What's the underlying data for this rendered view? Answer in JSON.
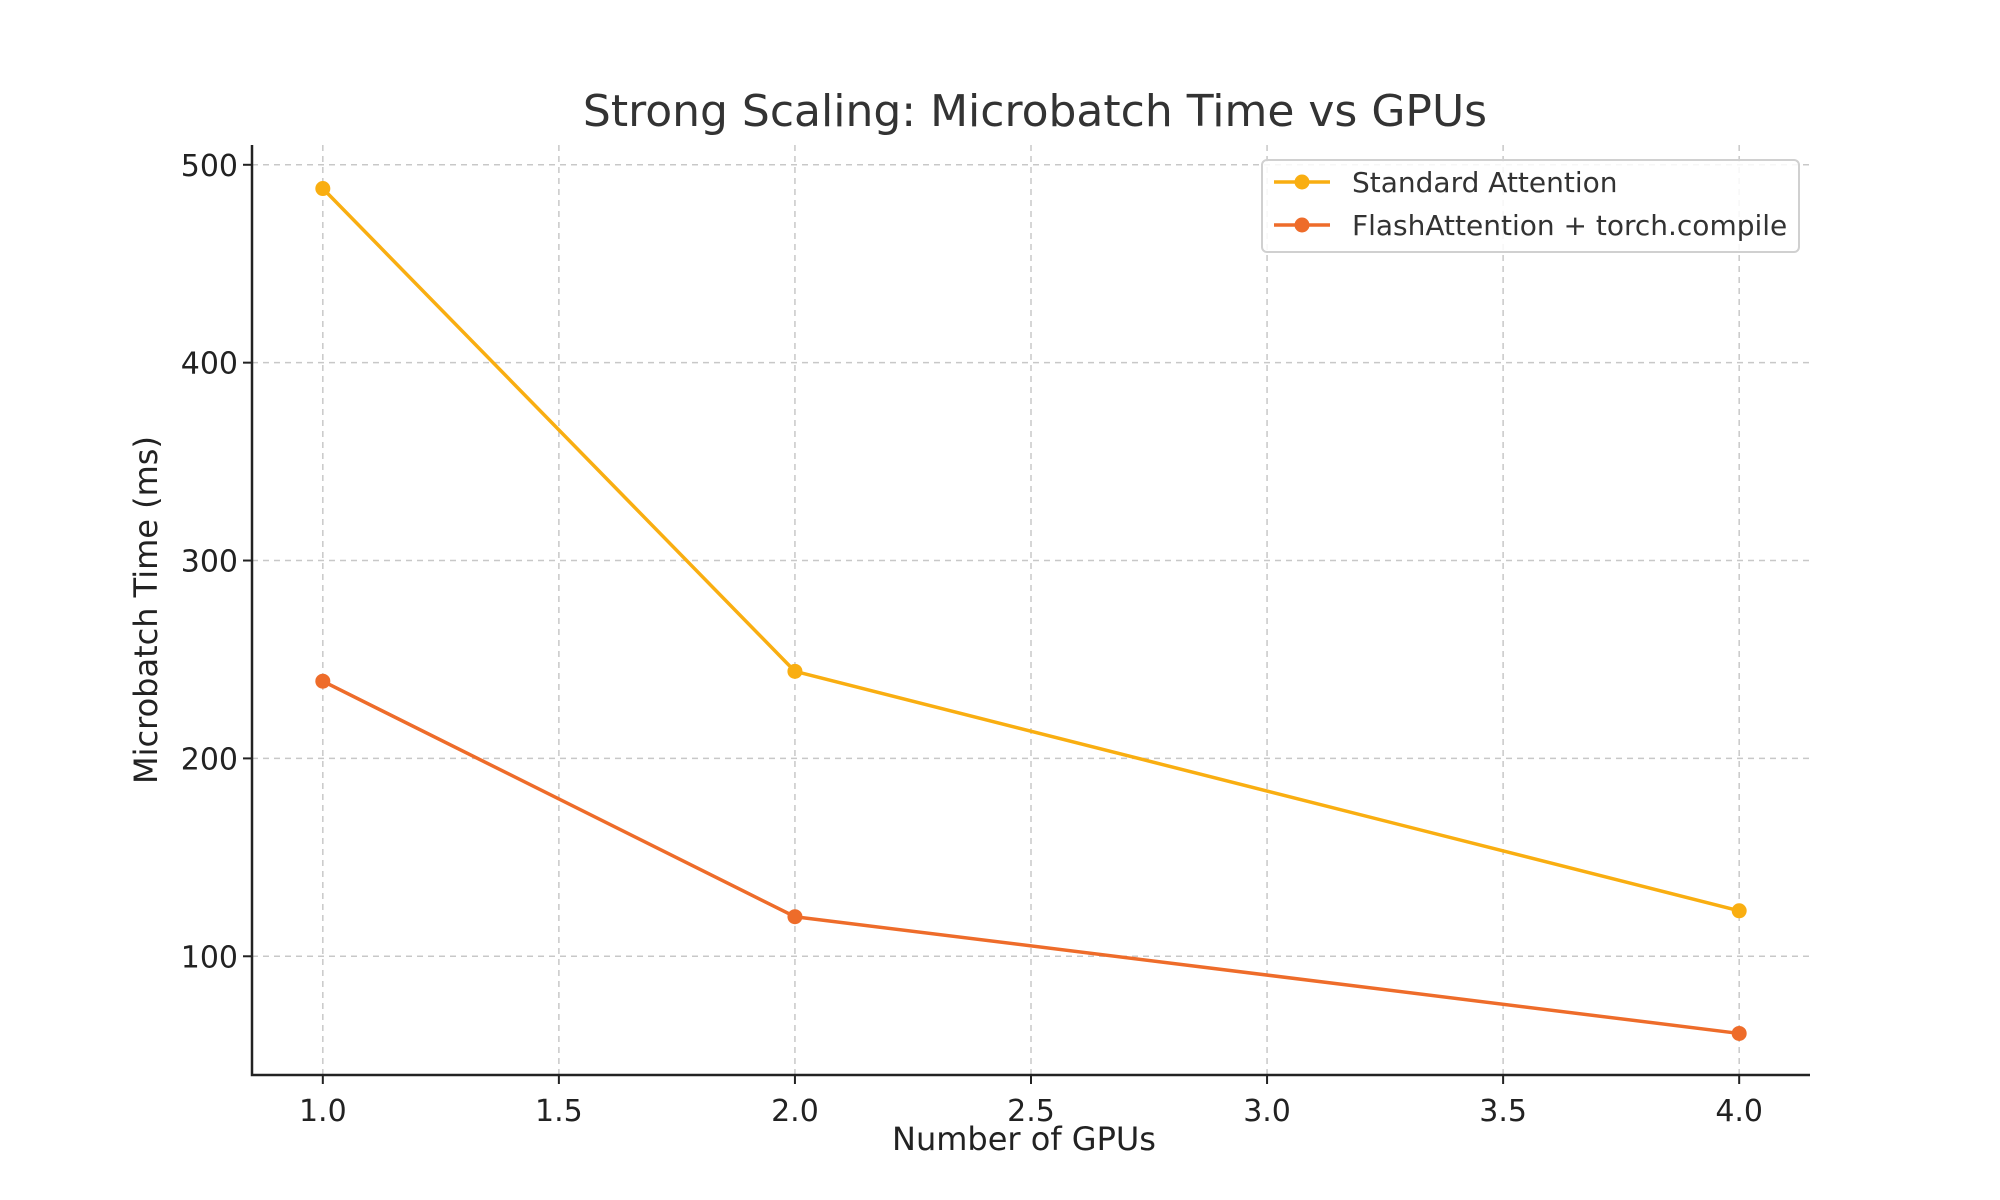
{
  "chart_data": {
    "type": "line",
    "title": "Strong Scaling: Microbatch Time vs GPUs",
    "xlabel": "Number of GPUs",
    "ylabel": "Microbatch Time (ms)",
    "x": [
      1,
      2,
      4
    ],
    "xlim": [
      0.85,
      4.15
    ],
    "ylim": [
      40,
      510
    ],
    "xticks": [
      1.0,
      1.5,
      2.0,
      2.5,
      3.0,
      3.5,
      4.0
    ],
    "xtick_labels": [
      "1.0",
      "1.5",
      "2.0",
      "2.5",
      "3.0",
      "3.5",
      "4.0"
    ],
    "yticks": [
      100,
      200,
      300,
      400,
      500
    ],
    "ytick_labels": [
      "100",
      "200",
      "300",
      "400",
      "500"
    ],
    "grid": true,
    "legend_position": "top-right",
    "series": [
      {
        "name": "Standard Attention",
        "values": [
          488,
          244,
          123
        ],
        "color": "#F9AE11"
      },
      {
        "name": "FlashAttention + torch.compile",
        "values": [
          239,
          120,
          61
        ],
        "color": "#EE6C2A"
      }
    ]
  }
}
